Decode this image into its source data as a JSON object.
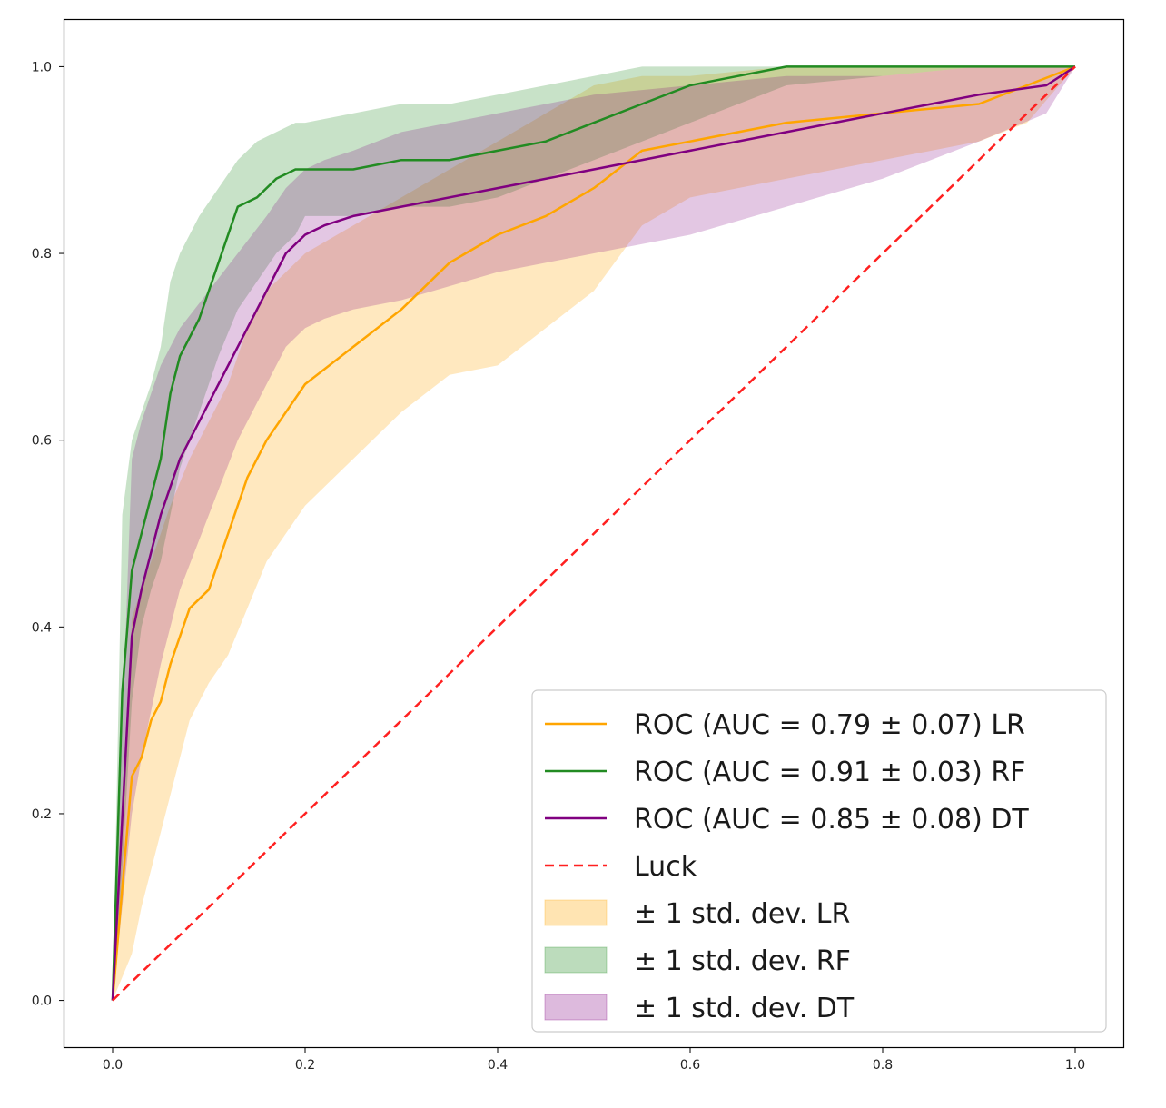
{
  "chart_data": {
    "type": "line",
    "title": "",
    "xlabel": "",
    "ylabel": "",
    "xlim": [
      -0.05,
      1.05
    ],
    "ylim": [
      -0.05,
      1.05
    ],
    "xticks": [
      "0.0",
      "0.2",
      "0.4",
      "0.6",
      "0.8",
      "1.0"
    ],
    "yticks": [
      "0.0",
      "0.2",
      "0.4",
      "0.6",
      "0.8",
      "1.0"
    ],
    "grid": false,
    "legend_position": "bottom-right",
    "colors": {
      "LR": "#ffa500",
      "RF": "#228b22",
      "DT": "#800080",
      "Luck": "#ff2020"
    },
    "series": [
      {
        "name": "ROC (AUC = 0.79 ± 0.07) LR",
        "key": "LR",
        "x": [
          0,
          0.02,
          0.03,
          0.04,
          0.05,
          0.06,
          0.08,
          0.1,
          0.12,
          0.14,
          0.16,
          0.2,
          0.25,
          0.3,
          0.35,
          0.4,
          0.45,
          0.5,
          0.55,
          0.6,
          0.7,
          0.8,
          0.9,
          0.95,
          1.0
        ],
        "y": [
          0,
          0.24,
          0.26,
          0.3,
          0.32,
          0.36,
          0.42,
          0.44,
          0.5,
          0.56,
          0.6,
          0.66,
          0.7,
          0.74,
          0.79,
          0.82,
          0.84,
          0.87,
          0.91,
          0.92,
          0.94,
          0.95,
          0.96,
          0.98,
          1.0
        ],
        "std_lower": [
          0,
          0.05,
          0.1,
          0.14,
          0.18,
          0.22,
          0.3,
          0.34,
          0.37,
          0.42,
          0.47,
          0.53,
          0.58,
          0.63,
          0.67,
          0.68,
          0.72,
          0.76,
          0.83,
          0.86,
          0.88,
          0.9,
          0.92,
          0.94,
          1.0
        ],
        "std_upper": [
          0,
          0.41,
          0.44,
          0.47,
          0.5,
          0.53,
          0.58,
          0.62,
          0.66,
          0.72,
          0.76,
          0.8,
          0.83,
          0.86,
          0.89,
          0.92,
          0.95,
          0.98,
          0.99,
          0.99,
          1.0,
          1.0,
          1.0,
          1.0,
          1.0
        ]
      },
      {
        "name": "ROC (AUC = 0.91 ± 0.03) RF",
        "key": "RF",
        "x": [
          0,
          0.01,
          0.02,
          0.03,
          0.04,
          0.05,
          0.06,
          0.07,
          0.09,
          0.11,
          0.13,
          0.15,
          0.17,
          0.19,
          0.2,
          0.25,
          0.3,
          0.35,
          0.4,
          0.45,
          0.5,
          0.55,
          0.6,
          0.65,
          0.7,
          0.8,
          0.9,
          1.0
        ],
        "y": [
          0,
          0.33,
          0.46,
          0.5,
          0.54,
          0.58,
          0.65,
          0.69,
          0.73,
          0.79,
          0.85,
          0.86,
          0.88,
          0.89,
          0.89,
          0.89,
          0.9,
          0.9,
          0.91,
          0.92,
          0.94,
          0.96,
          0.98,
          0.99,
          1.0,
          1.0,
          1.0,
          1.0
        ],
        "std_lower": [
          0,
          0.14,
          0.32,
          0.4,
          0.44,
          0.47,
          0.52,
          0.57,
          0.63,
          0.69,
          0.74,
          0.77,
          0.8,
          0.82,
          0.84,
          0.84,
          0.85,
          0.85,
          0.86,
          0.88,
          0.9,
          0.92,
          0.94,
          0.96,
          0.98,
          0.99,
          1.0,
          1.0
        ],
        "std_upper": [
          0,
          0.52,
          0.6,
          0.63,
          0.66,
          0.7,
          0.77,
          0.8,
          0.84,
          0.87,
          0.9,
          0.92,
          0.93,
          0.94,
          0.94,
          0.95,
          0.96,
          0.96,
          0.97,
          0.98,
          0.99,
          1.0,
          1.0,
          1.0,
          1.0,
          1.0,
          1.0,
          1.0
        ]
      },
      {
        "name": "ROC (AUC = 0.85 ± 0.08) DT",
        "key": "DT",
        "x": [
          0,
          0.02,
          0.03,
          0.05,
          0.07,
          0.1,
          0.13,
          0.16,
          0.18,
          0.2,
          0.22,
          0.25,
          0.3,
          0.4,
          0.5,
          0.6,
          0.7,
          0.8,
          0.9,
          0.97,
          1.0
        ],
        "y": [
          0,
          0.39,
          0.44,
          0.52,
          0.58,
          0.64,
          0.7,
          0.76,
          0.8,
          0.82,
          0.83,
          0.84,
          0.85,
          0.87,
          0.89,
          0.91,
          0.93,
          0.95,
          0.97,
          0.98,
          1.0
        ],
        "std_lower": [
          0,
          0.2,
          0.26,
          0.36,
          0.44,
          0.52,
          0.6,
          0.66,
          0.7,
          0.72,
          0.73,
          0.74,
          0.75,
          0.78,
          0.8,
          0.82,
          0.85,
          0.88,
          0.92,
          0.95,
          1.0
        ],
        "std_upper": [
          0,
          0.58,
          0.62,
          0.68,
          0.72,
          0.76,
          0.8,
          0.84,
          0.87,
          0.89,
          0.9,
          0.91,
          0.93,
          0.95,
          0.97,
          0.98,
          0.99,
          0.99,
          1.0,
          1.0,
          1.0
        ]
      },
      {
        "name": "Luck",
        "key": "Luck",
        "style": "dashed",
        "x": [
          0,
          1
        ],
        "y": [
          0,
          1
        ]
      }
    ],
    "bands": [
      {
        "label": "± 1 std. dev. LR",
        "key": "LR",
        "color": "#ffa500",
        "opacity": 0.25
      },
      {
        "label": "± 1 std. dev. RF",
        "key": "RF",
        "color": "#228b22",
        "opacity": 0.25
      },
      {
        "label": "± 1 std. dev. DT",
        "key": "DT",
        "color": "#800080",
        "opacity": 0.22
      }
    ]
  }
}
